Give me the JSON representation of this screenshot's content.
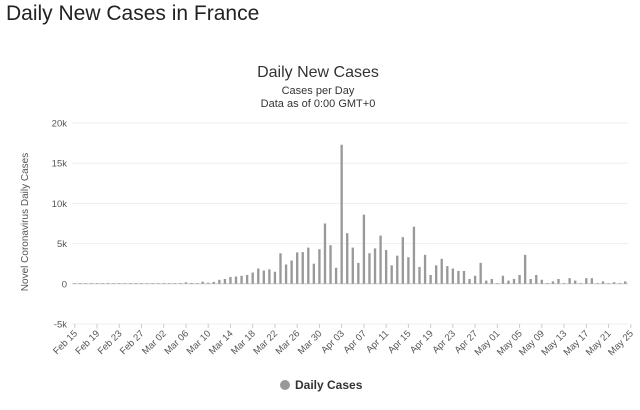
{
  "page_heading": "Daily New Cases in France",
  "chart_data": {
    "type": "bar",
    "title": "Daily New Cases",
    "subtitle": "Cases per Day",
    "subtitle2": "Data as of 0:00 GMT+0",
    "ylabel": "Novel Coronavirus Daily Cases",
    "xlabel": "",
    "ylim": [
      -5000,
      20000
    ],
    "yticks": [
      -5000,
      0,
      5000,
      10000,
      15000,
      20000
    ],
    "ytick_labels": [
      "-5k",
      "0",
      "5k",
      "10k",
      "15k",
      "20k"
    ],
    "xtick_labels": [
      "Feb 15",
      "Feb 19",
      "Feb 23",
      "Feb 27",
      "Mar 02",
      "Mar 06",
      "Mar 10",
      "Mar 14",
      "Mar 18",
      "Mar 22",
      "Mar 26",
      "Mar 30",
      "Apr 03",
      "Apr 07",
      "Apr 11",
      "Apr 15",
      "Apr 19",
      "Apr 23",
      "Apr 27",
      "May 01",
      "May 05",
      "May 09",
      "May 13",
      "May 17",
      "May 21",
      "May 25"
    ],
    "start_date": "Feb 15",
    "grid": true,
    "legend_position": "bottom-center",
    "series": [
      {
        "name": "Daily Cases",
        "color": "#999999",
        "values": [
          0,
          0,
          0,
          0,
          0,
          0,
          0,
          0,
          0,
          0,
          2,
          4,
          20,
          19,
          43,
          20,
          61,
          30,
          24,
          90,
          180,
          103,
          78,
          264,
          134,
          240,
          500,
          600,
          850,
          900,
          1000,
          1100,
          1400,
          1900,
          1650,
          1800,
          1500,
          3800,
          2400,
          2900,
          3900,
          3950,
          4500,
          2500,
          4300,
          7500,
          4800,
          2000,
          17300,
          6300,
          4500,
          2600,
          8600,
          3800,
          4400,
          6000,
          4200,
          2300,
          3500,
          5800,
          3300,
          7100,
          2100,
          3600,
          1100,
          2300,
          3100,
          2200,
          1900,
          1600,
          1600,
          600,
          1000,
          2600,
          400,
          600,
          0,
          1000,
          400,
          600,
          1100,
          3600,
          600,
          1100,
          500,
          100,
          300,
          600,
          0,
          700,
          400,
          0,
          700,
          700,
          0,
          300,
          0,
          200,
          0,
          300
        ]
      }
    ]
  }
}
